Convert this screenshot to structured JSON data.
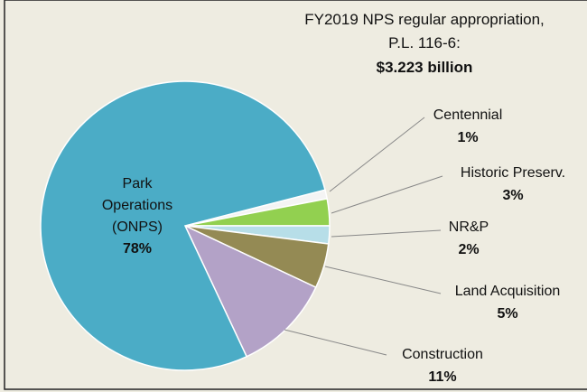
{
  "chart_data": {
    "type": "pie",
    "annotation": [
      "FY2019 NPS regular appropriation,",
      "P.L. 116-6:",
      "$3.223 billion"
    ],
    "categories": [
      "Centennial",
      "Historic Preserv.",
      "NR&P",
      "Land Acquisition",
      "Construction",
      "Park Operations (ONPS)"
    ],
    "values": [
      1,
      3,
      2,
      5,
      11,
      78
    ],
    "value_labels": [
      "1%",
      "3%",
      "2%",
      "5%",
      "11%",
      "78%"
    ],
    "colors": [
      "#f4f4f4",
      "#92d050",
      "#b7dee8",
      "#948a54",
      "#b3a2c7",
      "#4bacc6"
    ]
  }
}
